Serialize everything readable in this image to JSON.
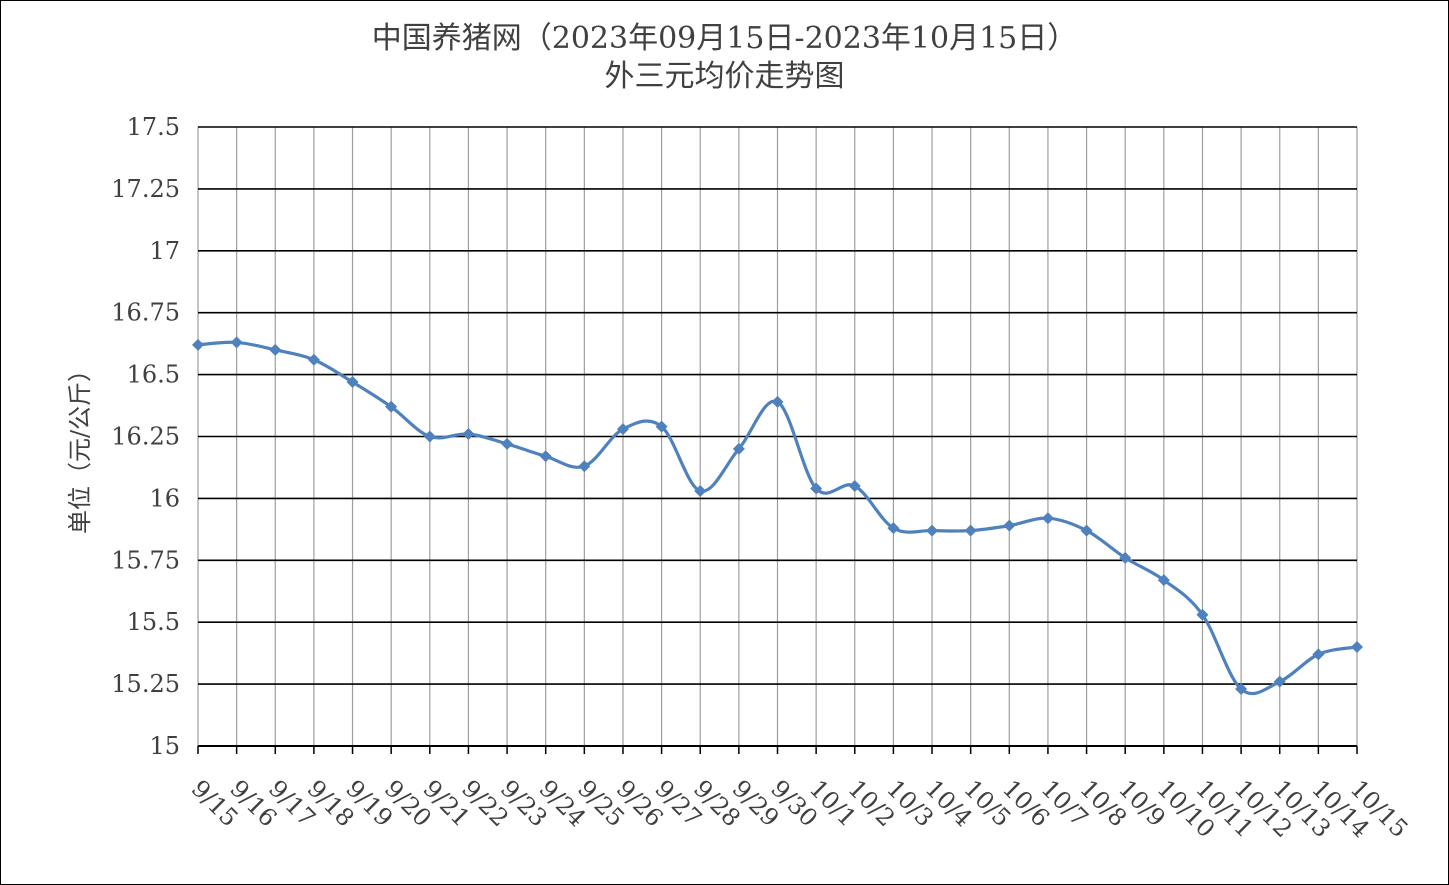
{
  "chart_data": {
    "type": "line",
    "title_line1": "中国养猪网（2023年09月15日-2023年10月15日）",
    "title_line2": "外三元均价走势图",
    "xlabel": "",
    "ylabel": "单位（元/公斤）",
    "ylim": [
      15,
      17.5
    ],
    "y_ticks": [
      "15",
      "15.25",
      "15.5",
      "15.75",
      "16",
      "16.25",
      "16.5",
      "16.75",
      "17",
      "17.25",
      "17.5"
    ],
    "y_tick_values": [
      15,
      15.25,
      15.5,
      15.75,
      16,
      16.25,
      16.5,
      16.75,
      17,
      17.25,
      17.5
    ],
    "grid": true,
    "legend": "none",
    "line_color": "#4f81bd",
    "categories": [
      "9/15",
      "9/16",
      "9/17",
      "9/18",
      "9/19",
      "9/20",
      "9/21",
      "9/22",
      "9/23",
      "9/24",
      "9/25",
      "9/26",
      "9/27",
      "9/28",
      "9/29",
      "9/30",
      "10/1",
      "10/2",
      "10/3",
      "10/4",
      "10/5",
      "10/6",
      "10/7",
      "10/8",
      "10/9",
      "10/10",
      "10/11",
      "10/12",
      "10/13",
      "10/14",
      "10/15"
    ],
    "series": [
      {
        "values": [
          16.62,
          16.63,
          16.6,
          16.56,
          16.47,
          16.37,
          16.25,
          16.26,
          16.22,
          16.17,
          16.13,
          16.28,
          16.29,
          16.03,
          16.2,
          16.39,
          16.04,
          16.05,
          15.88,
          15.87,
          15.87,
          15.89,
          15.92,
          15.87,
          15.76,
          15.67,
          15.53,
          15.23,
          15.26,
          15.37,
          15.4
        ]
      }
    ]
  }
}
